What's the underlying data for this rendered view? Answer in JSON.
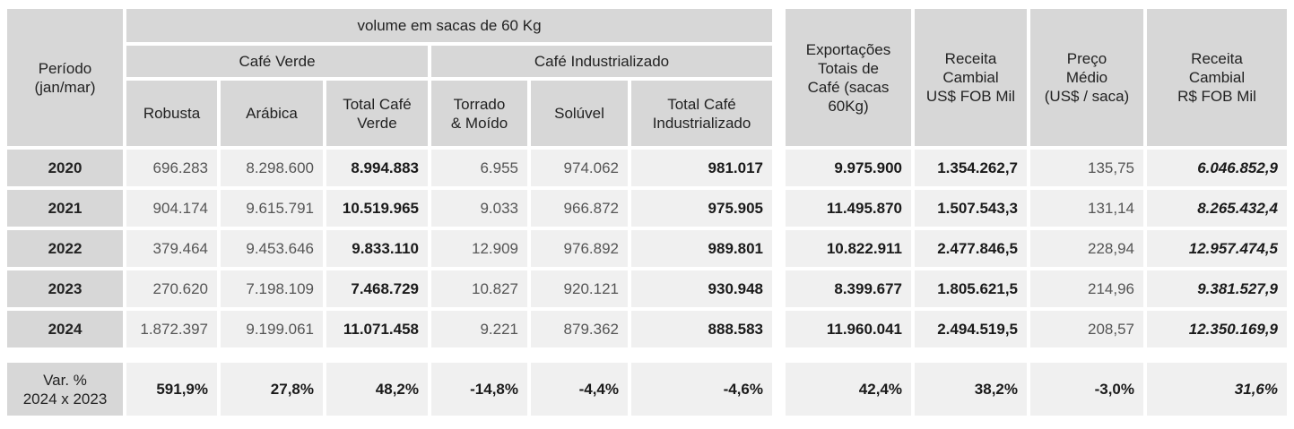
{
  "header": {
    "periodo": "Período\n(jan/mar)",
    "volume": "volume em sacas de 60 Kg",
    "cafe_verde": "Café Verde",
    "cafe_industrializado": "Café Industrializado",
    "robusta": "Robusta",
    "arabica": "Arábica",
    "total_verde": "Total Café\nVerde",
    "torrado": "Torrado\n& Moído",
    "soluvel": "Solúvel",
    "total_ind": "Total Café\nIndustrializado",
    "exportacoes": "Exportações\nTotais de\nCafé (sacas\n60Kg)",
    "receita_usd": "Receita\nCambial\nUS$ FOB Mil",
    "preco": "Preço\nMédio\n(US$ / saca)",
    "receita_brl": "Receita\nCambial\nR$ FOB Mil"
  },
  "rows": [
    {
      "year": "2020",
      "robusta": "696.283",
      "arabica": "8.298.600",
      "total_verde": "8.994.883",
      "torrado": "6.955",
      "soluvel": "974.062",
      "total_ind": "981.017",
      "export": "9.975.900",
      "receita_usd": "1.354.262,7",
      "preco": "135,75",
      "receita_brl": "6.046.852,9"
    },
    {
      "year": "2021",
      "robusta": "904.174",
      "arabica": "9.615.791",
      "total_verde": "10.519.965",
      "torrado": "9.033",
      "soluvel": "966.872",
      "total_ind": "975.905",
      "export": "11.495.870",
      "receita_usd": "1.507.543,3",
      "preco": "131,14",
      "receita_brl": "8.265.432,4"
    },
    {
      "year": "2022",
      "robusta": "379.464",
      "arabica": "9.453.646",
      "total_verde": "9.833.110",
      "torrado": "12.909",
      "soluvel": "976.892",
      "total_ind": "989.801",
      "export": "10.822.911",
      "receita_usd": "2.477.846,5",
      "preco": "228,94",
      "receita_brl": "12.957.474,5"
    },
    {
      "year": "2023",
      "robusta": "270.620",
      "arabica": "7.198.109",
      "total_verde": "7.468.729",
      "torrado": "10.827",
      "soluvel": "920.121",
      "total_ind": "930.948",
      "export": "8.399.677",
      "receita_usd": "1.805.621,5",
      "preco": "214,96",
      "receita_brl": "9.381.527,9"
    },
    {
      "year": "2024",
      "robusta": "1.872.397",
      "arabica": "9.199.061",
      "total_verde": "11.071.458",
      "torrado": "9.221",
      "soluvel": "879.362",
      "total_ind": "888.583",
      "export": "11.960.041",
      "receita_usd": "2.494.519,5",
      "preco": "208,57",
      "receita_brl": "12.350.169,9"
    }
  ],
  "variation": {
    "label": "Var. %\n2024 x 2023",
    "robusta": "591,9%",
    "arabica": "27,8%",
    "total_verde": "48,2%",
    "torrado": "-14,8%",
    "soluvel": "-4,4%",
    "total_ind": "-4,6%",
    "export": "42,4%",
    "receita_usd": "38,2%",
    "preco": "-3,0%",
    "receita_brl": "31,6%"
  }
}
